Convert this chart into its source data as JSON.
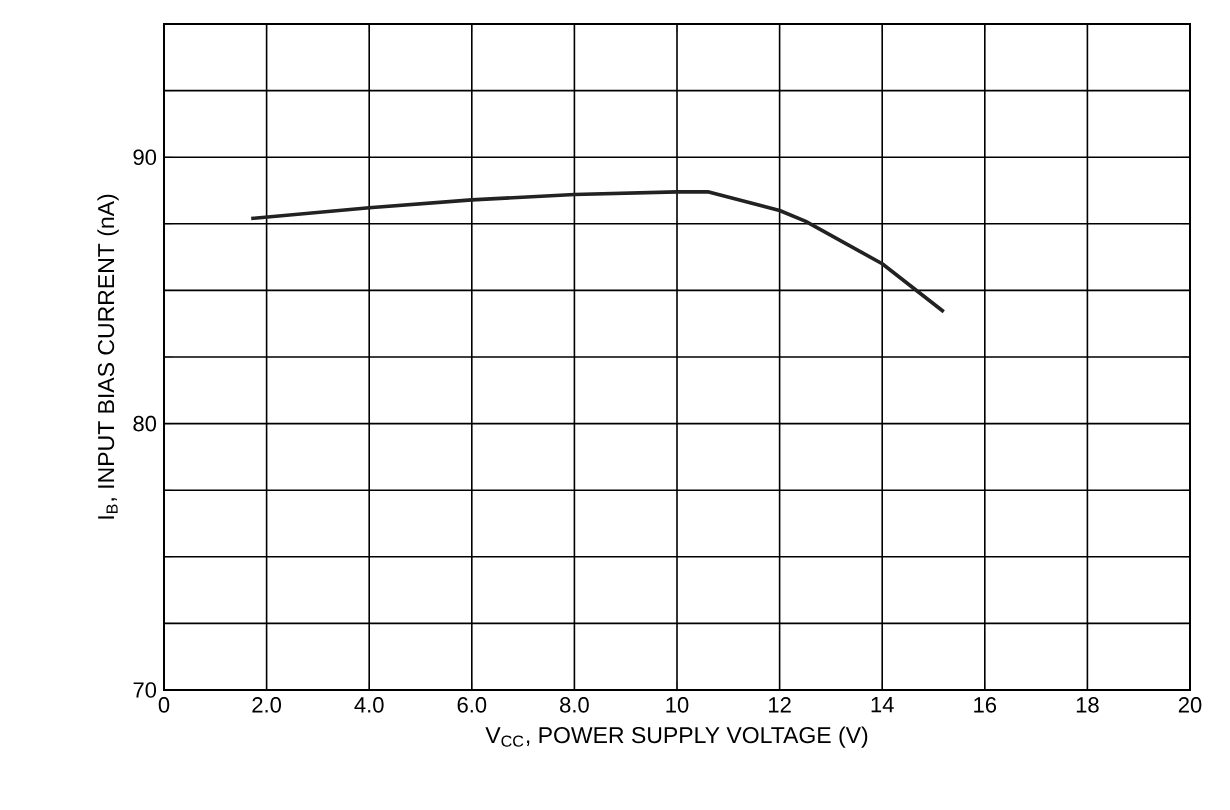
{
  "chart_data": {
    "type": "line",
    "xlabel": "V$_{CC}$, POWER SUPPLY VOLTAGE (V)",
    "ylabel": "I$_{B}$, INPUT BIAS CURRENT (nA)",
    "series": [
      {
        "color": "#222222",
        "x": [
          1.7,
          4.0,
          6.0,
          8.0,
          10.0,
          10.6,
          12.0,
          12.5,
          14.0,
          15.2
        ],
        "values": [
          87.7,
          88.1,
          88.4,
          88.6,
          88.7,
          88.7,
          88.0,
          87.6,
          86.0,
          84.2
        ]
      }
    ],
    "xlim": [
      0,
      20
    ],
    "xticks": [
      0,
      {
        "value": 2,
        "label": "2.0"
      },
      {
        "value": 4,
        "label": "4.0"
      },
      {
        "value": 6,
        "label": "6.0"
      },
      {
        "value": 8,
        "label": "8.0"
      },
      10,
      12,
      14,
      16,
      18,
      20
    ],
    "ylim": [
      70,
      95
    ],
    "yticks": [
      70,
      {
        "value": 72.5,
        "label": null
      },
      {
        "value": 75,
        "label": null
      },
      {
        "value": 77.5,
        "label": null
      },
      80,
      {
        "value": 82.5,
        "label": null
      },
      {
        "value": 85,
        "label": null
      },
      {
        "value": 87.5,
        "label": null
      },
      90,
      {
        "value": 92.5,
        "label": null
      },
      {
        "value": 95,
        "label": null
      }
    ],
    "grid": true,
    "marker": "none",
    "line_style": "solid"
  }
}
